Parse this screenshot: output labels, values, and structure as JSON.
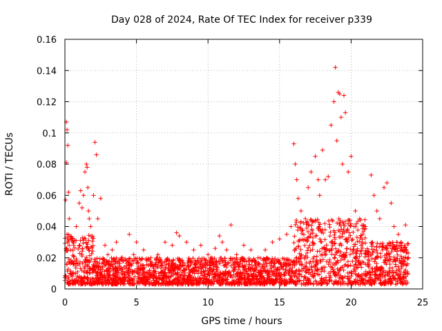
{
  "chart_data": {
    "type": "scatter",
    "title": "Day 028 of 2024, Rate Of TEC Index for receiver p339",
    "xlabel": "GPS time / hours",
    "ylabel": "ROTI / TECUs",
    "xlim": [
      0,
      25
    ],
    "ylim": [
      0,
      0.16
    ],
    "xticks": [
      0,
      5,
      10,
      15,
      20,
      25
    ],
    "xtick_labels": [
      "0",
      "5",
      "10",
      "15",
      "20",
      "25"
    ],
    "yticks": [
      0,
      0.02,
      0.04,
      0.06,
      0.08,
      0.1,
      0.12,
      0.14,
      0.16
    ],
    "ytick_labels": [
      "0",
      "0.02",
      "0.04",
      "0.06",
      "0.08",
      "0.1",
      "0.12",
      "0.14",
      "0.16"
    ],
    "grid": true,
    "marker": "+",
    "color": "#ff0000",
    "series": [
      {
        "name": "ROTI",
        "x": [
          0.05,
          0.1,
          0.15,
          0.2,
          0.25,
          0.3,
          0.1,
          0.15,
          0.2,
          0.3,
          0.4,
          0.5,
          0.6,
          0.8,
          1.0,
          1.1,
          1.2,
          1.3,
          1.4,
          1.5,
          1.55,
          1.6,
          1.65,
          1.7,
          1.8,
          2.0,
          2.1,
          2.2,
          2.3,
          2.5,
          2.8,
          3.0,
          3.3,
          3.6,
          4.0,
          4.5,
          4.8,
          5.0,
          5.5,
          6.0,
          6.5,
          7.0,
          7.5,
          7.8,
          8.0,
          8.5,
          9.0,
          9.5,
          10.0,
          10.5,
          10.8,
          11.0,
          11.3,
          11.6,
          12.0,
          12.5,
          13.0,
          13.5,
          14.0,
          14.5,
          15.0,
          15.5,
          15.8,
          16.0,
          16.1,
          16.2,
          16.3,
          16.5,
          16.8,
          17.0,
          17.2,
          17.5,
          17.7,
          17.8,
          18.0,
          18.2,
          18.4,
          18.6,
          18.8,
          18.9,
          19.0,
          19.1,
          19.2,
          19.3,
          19.4,
          19.5,
          19.6,
          19.8,
          20.0,
          20.3,
          20.6,
          21.0,
          21.4,
          21.6,
          21.8,
          22.0,
          22.3,
          22.5,
          22.8,
          23.0,
          23.3,
          23.5,
          23.8,
          24.0
        ],
        "y": [
          0.057,
          0.107,
          0.102,
          0.092,
          0.062,
          0.045,
          0.081,
          0.035,
          0.03,
          0.028,
          0.025,
          0.032,
          0.028,
          0.04,
          0.055,
          0.063,
          0.052,
          0.06,
          0.075,
          0.08,
          0.078,
          0.065,
          0.05,
          0.045,
          0.04,
          0.06,
          0.094,
          0.086,
          0.045,
          0.058,
          0.028,
          0.022,
          0.025,
          0.03,
          0.02,
          0.035,
          0.022,
          0.03,
          0.025,
          0.02,
          0.022,
          0.03,
          0.028,
          0.036,
          0.034,
          0.03,
          0.025,
          0.028,
          0.022,
          0.026,
          0.034,
          0.03,
          0.025,
          0.041,
          0.022,
          0.028,
          0.025,
          0.02,
          0.025,
          0.03,
          0.032,
          0.035,
          0.04,
          0.093,
          0.08,
          0.07,
          0.058,
          0.05,
          0.045,
          0.065,
          0.075,
          0.085,
          0.07,
          0.06,
          0.089,
          0.07,
          0.072,
          0.105,
          0.12,
          0.142,
          0.095,
          0.126,
          0.125,
          0.11,
          0.08,
          0.124,
          0.113,
          0.075,
          0.085,
          0.05,
          0.045,
          0.04,
          0.073,
          0.06,
          0.05,
          0.045,
          0.065,
          0.068,
          0.055,
          0.04,
          0.035,
          0.03,
          0.041,
          0.02
        ]
      }
    ],
    "baseline_band": {
      "x_range": [
        0,
        24
      ],
      "y_min": 0.003,
      "y_max": 0.02,
      "description": "dense cloud of points"
    }
  }
}
